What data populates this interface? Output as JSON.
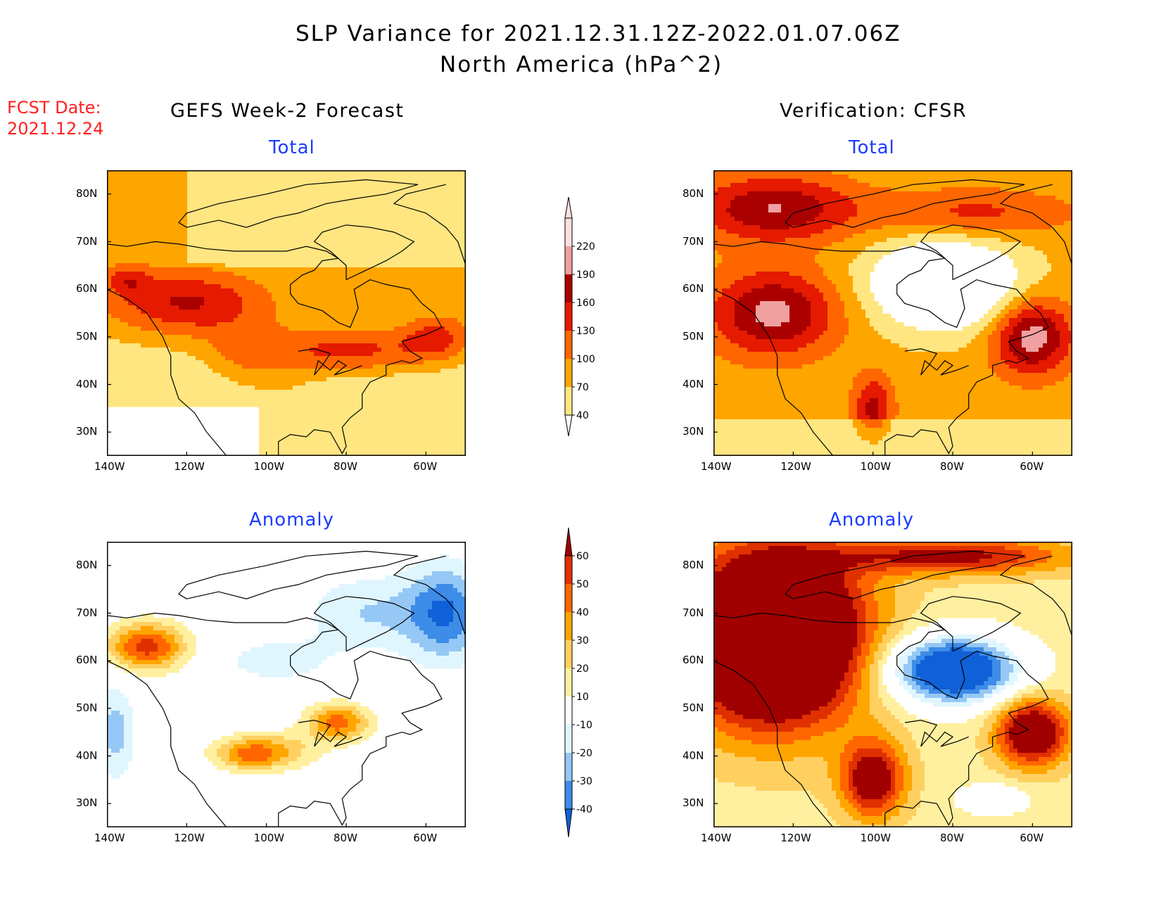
{
  "title": {
    "line1": "SLP Variance for 2021.12.31.12Z-2022.01.07.06Z",
    "line2": "North America (hPa^2)"
  },
  "fcst": {
    "label": "FCST Date:",
    "date": "2021.12.24"
  },
  "columns": {
    "left": "GEFS Week-2 Forecast",
    "right": "Verification: CFSR"
  },
  "panels": [
    {
      "title": "Total",
      "kind": "total",
      "source": "forecast"
    },
    {
      "title": "Total",
      "kind": "total",
      "source": "verification"
    },
    {
      "title": "Anomaly",
      "kind": "anomaly",
      "source": "forecast"
    },
    {
      "title": "Anomaly",
      "kind": "anomaly",
      "source": "verification"
    }
  ],
  "axes": {
    "lat_ticks": [
      "30N",
      "40N",
      "50N",
      "60N",
      "70N",
      "80N"
    ],
    "lon_ticks": [
      "140W",
      "120W",
      "100W",
      "80W",
      "60W"
    ],
    "lat_range": [
      25,
      85
    ],
    "lon_range": [
      -140,
      -50
    ]
  },
  "colorbars": {
    "total": {
      "levels": [
        "40",
        "70",
        "100",
        "130",
        "160",
        "190",
        "220"
      ],
      "colors": [
        "#ffe680",
        "#ffa500",
        "#ff6600",
        "#e51a00",
        "#aa0000",
        "#f0a0a0",
        "#ffe0e0"
      ]
    },
    "anomaly": {
      "levels": [
        "-40",
        "-30",
        "-20",
        "-10",
        "10",
        "20",
        "30",
        "40",
        "50",
        "60"
      ],
      "colors": [
        "#1060d8",
        "#3c8ce8",
        "#96c8f5",
        "#e0f6ff",
        "#ffffff",
        "#fff0a0",
        "#ffd060",
        "#ffa500",
        "#ff6600",
        "#e03000",
        "#a00000"
      ]
    }
  }
}
